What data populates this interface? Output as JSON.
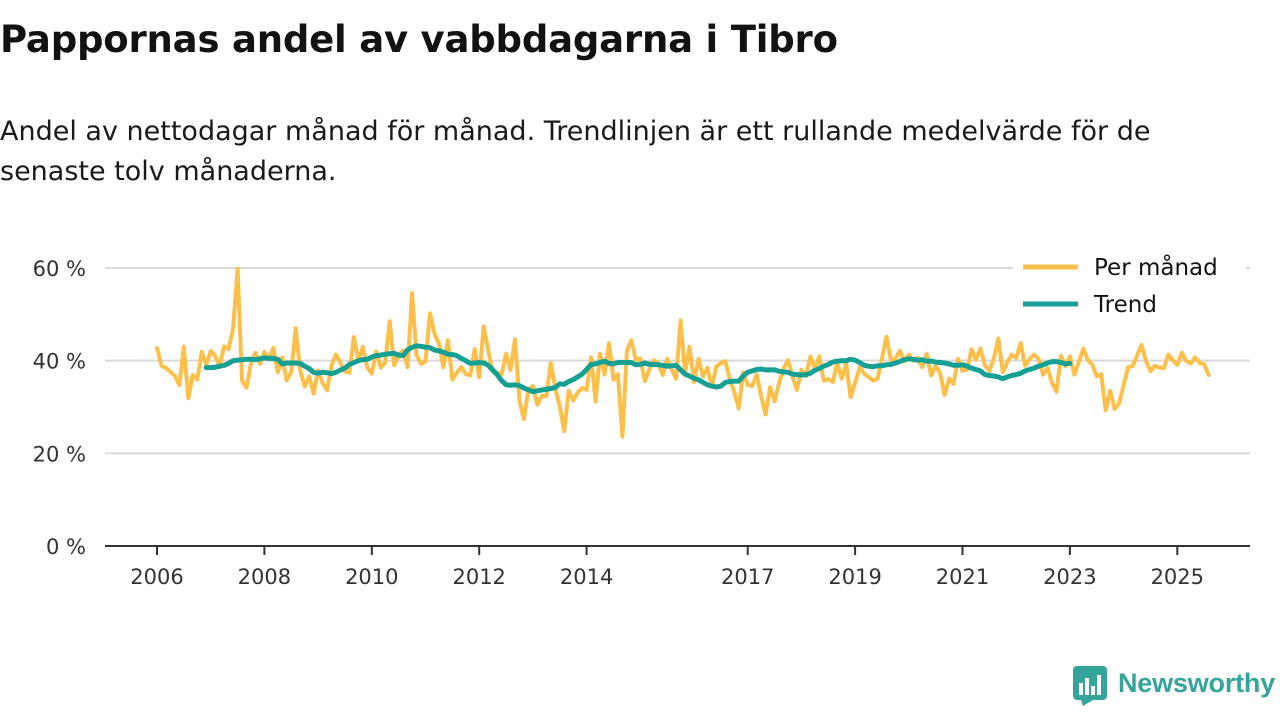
{
  "header": {
    "title": "Pappornas andel av vabbdagarna i Tibro",
    "subtitle": "Andel av nettodagar månad för månad. Trendlinjen är ett rullande medelvärde för de senaste tolv månaderna."
  },
  "brand": {
    "name": "Newsworthy",
    "color": "#35a59b",
    "icon": "newsworthy-logo-icon"
  },
  "colors": {
    "monthly": "#fcc04a",
    "trend": "#16a094",
    "grid": "#d9d9d9",
    "axis": "#333333"
  },
  "chart_data": {
    "type": "line",
    "title": "Pappornas andel av vabbdagarna i Tibro",
    "xlabel": "",
    "ylabel": "",
    "ylim": [
      0,
      60
    ],
    "yticks": [
      0,
      20,
      40,
      60
    ],
    "ytick_labels": [
      "0 %",
      "20 %",
      "40 %",
      "60 %"
    ],
    "xlim": [
      2006.0,
      2026.34
    ],
    "xticks": [
      2006,
      2008,
      2010,
      2012,
      2014,
      2017,
      2019,
      2021,
      2023,
      2025
    ],
    "xtick_labels": [
      "2006",
      "2008",
      "2010",
      "2012",
      "2014",
      "2017",
      "2019",
      "2021",
      "2023",
      "2025"
    ],
    "grid": true,
    "legend_position": "top-right",
    "start": {
      "year": 2006,
      "month": 1
    },
    "series": [
      {
        "name": "Per månad",
        "values": [
          42.7,
          38.9,
          38.4,
          37.6,
          36.7,
          34.7,
          43.0,
          31.9,
          36.9,
          35.9,
          41.9,
          39.1,
          42.1,
          41.0,
          38.9,
          43.1,
          42.5,
          47.0,
          59.8,
          35.7,
          34.2,
          39.5,
          41.7,
          39.3,
          41.9,
          40.4,
          42.8,
          37.5,
          40.7,
          35.7,
          37.6,
          47.0,
          37.9,
          34.4,
          36.6,
          32.9,
          37.9,
          35.2,
          33.6,
          39.0,
          41.3,
          39.5,
          37.6,
          37.4,
          45.1,
          40.0,
          43.0,
          38.5,
          37.2,
          42.0,
          38.5,
          39.6,
          48.5,
          39.0,
          41.2,
          42.2,
          38.6,
          54.6,
          41.2,
          39.3,
          39.8,
          50.2,
          45.8,
          43.7,
          38.6,
          44.4,
          35.9,
          37.4,
          38.6,
          37.1,
          36.8,
          42.5,
          36.4,
          47.4,
          42.2,
          37.7,
          37.4,
          37.0,
          41.5,
          38.0,
          44.6,
          31.2,
          27.4,
          33.8,
          34.5,
          30.5,
          32.4,
          32.3,
          39.5,
          34.0,
          30.1,
          24.8,
          33.5,
          31.4,
          33.1,
          34.1,
          33.7,
          40.7,
          31.2,
          41.5,
          37.0,
          43.8,
          35.9,
          37.1,
          23.6,
          42.1,
          44.4,
          40.2,
          40.5,
          35.6,
          38.1,
          40.1,
          39.4,
          36.9,
          40.4,
          38.1,
          36.1,
          48.7,
          37.3,
          43.0,
          35.4,
          40.4,
          36.6,
          38.5,
          34.4,
          38.8,
          39.5,
          39.9,
          36.1,
          33.2,
          29.7,
          37.5,
          34.8,
          34.5,
          37.0,
          32.4,
          28.4,
          34.3,
          31.2,
          35.1,
          38.3,
          40.1,
          36.6,
          33.7,
          38.0,
          36.7,
          40.9,
          38.3,
          40.9,
          35.7,
          36.0,
          35.4,
          39.5,
          36.1,
          39.4,
          32.1,
          35.2,
          38.5,
          37.2,
          36.5,
          35.7,
          36.1,
          40.5,
          45.2,
          40.2,
          40.4,
          42.1,
          39.8,
          41.3,
          40.0,
          40.6,
          38.6,
          41.5,
          36.8,
          38.9,
          37.3,
          32.6,
          36.1,
          35.0,
          40.4,
          37.8,
          38.1,
          42.4,
          40.2,
          42.6,
          39.0,
          37.8,
          40.4,
          44.8,
          37.5,
          39.6,
          41.3,
          40.6,
          43.8,
          38.9,
          40.4,
          41.3,
          40.4,
          37.0,
          38.4,
          35.2,
          33.3,
          41.1,
          38.8,
          40.9,
          37.0,
          39.8,
          42.6,
          40.1,
          39.1,
          36.6,
          37.1,
          29.3,
          33.5,
          29.6,
          30.8,
          34.7,
          38.6,
          38.8,
          41.1,
          43.4,
          39.9,
          37.7,
          38.9,
          38.5,
          38.4,
          41.3,
          40.1,
          39.1,
          41.7,
          39.9,
          39.4,
          40.7,
          39.5,
          39.2,
          36.9
        ]
      },
      {
        "name": "Trend",
        "offset_months": 11,
        "values": [
          38.5,
          38.5,
          38.6,
          38.8,
          39.0,
          39.4,
          40.0,
          40.1,
          40.2,
          40.3,
          40.3,
          40.2,
          40.4,
          40.6,
          40.5,
          40.5,
          40.3,
          39.3,
          39.5,
          39.5,
          39.5,
          39.4,
          38.8,
          38.3,
          37.5,
          37.3,
          37.5,
          37.4,
          37.2,
          37.5,
          38.0,
          38.4,
          39.2,
          39.6,
          40.0,
          40.2,
          40.3,
          40.8,
          41.1,
          41.2,
          41.4,
          41.5,
          41.6,
          41.2,
          41.1,
          42.3,
          42.9,
          43.2,
          43.1,
          42.9,
          42.8,
          42.3,
          42.1,
          41.8,
          41.4,
          41.3,
          41.1,
          40.5,
          40.0,
          39.4,
          39.5,
          39.6,
          39.5,
          39.0,
          38.0,
          37.0,
          35.7,
          34.8,
          34.7,
          34.8,
          34.6,
          34.1,
          33.7,
          33.3,
          33.5,
          33.7,
          33.8,
          34.0,
          34.2,
          35.0,
          34.9,
          35.5,
          35.9,
          36.5,
          37.1,
          38.1,
          39.2,
          39.3,
          39.6,
          39.9,
          39.4,
          39.3,
          39.6,
          39.6,
          39.6,
          39.6,
          39.1,
          39.2,
          39.5,
          39.2,
          39.2,
          39.1,
          39.0,
          38.8,
          38.9,
          39.0,
          38.0,
          37.1,
          36.7,
          36.2,
          35.9,
          35.3,
          34.8,
          34.5,
          34.3,
          34.5,
          35.3,
          35.5,
          35.6,
          35.6,
          36.7,
          37.5,
          37.8,
          38.1,
          38.2,
          38.0,
          38.0,
          38.0,
          37.7,
          37.6,
          37.5,
          37.1,
          37.0,
          36.9,
          37.0,
          37.3,
          37.9,
          38.3,
          38.8,
          39.2,
          39.7,
          39.9,
          40.0,
          40.0,
          40.3,
          40.1,
          39.6,
          39.0,
          38.8,
          38.7,
          38.9,
          38.9,
          39.1,
          39.2,
          39.5,
          39.8,
          40.2,
          40.4,
          40.3,
          40.1,
          40.2,
          39.9,
          39.9,
          39.7,
          39.6,
          39.5,
          39.3,
          39.0,
          39.0,
          39.1,
          38.8,
          38.4,
          38.1,
          37.8,
          37.0,
          36.8,
          36.7,
          36.5,
          36.1,
          36.5,
          36.8,
          37.0,
          37.3,
          37.8,
          38.1,
          38.4,
          38.8,
          39.1,
          39.5,
          39.8,
          39.8,
          39.6,
          39.3,
          39.4
        ]
      }
    ]
  }
}
